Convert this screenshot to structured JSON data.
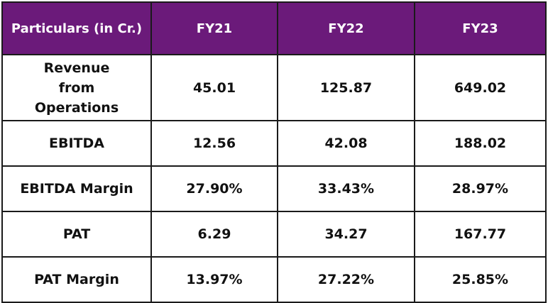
{
  "table": {
    "header": [
      "Particulars (in Cr.)",
      "FY21",
      "FY22",
      "FY23"
    ],
    "rows": [
      {
        "label": "Revenue from Operations",
        "values": [
          "45.01",
          "125.87",
          "649.02"
        ]
      },
      {
        "label": "EBITDA",
        "values": [
          "12.56",
          "42.08",
          "188.02"
        ]
      },
      {
        "label": "EBITDA Margin",
        "values": [
          "27.90%",
          "33.43%",
          "28.97%"
        ]
      },
      {
        "label": "PAT",
        "values": [
          "6.29",
          "34.27",
          "167.77"
        ]
      },
      {
        "label": "PAT Margin",
        "values": [
          "13.97%",
          "27.22%",
          "25.85%"
        ]
      }
    ]
  },
  "colors": {
    "header_bg": "#6b1a7a",
    "header_text": "#ffffff",
    "border": "#1a1a1a"
  }
}
